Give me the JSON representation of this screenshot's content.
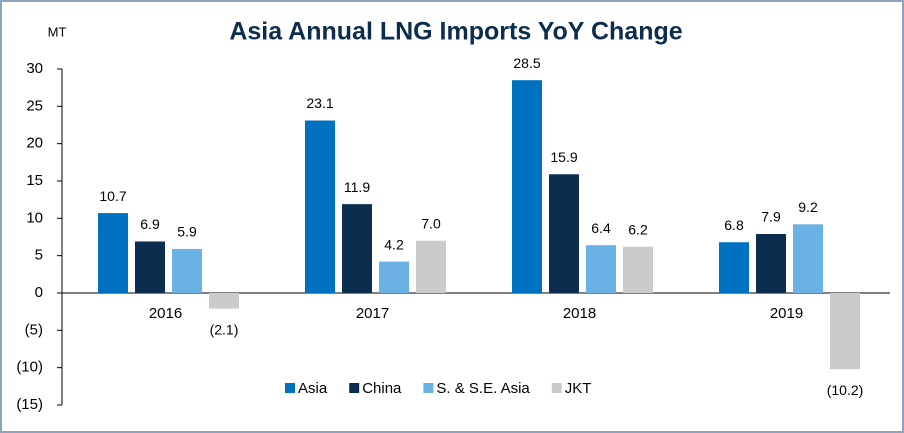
{
  "chart_data": {
    "type": "bar",
    "title": "Asia Annual LNG Imports YoY Change",
    "y_label": "MT",
    "categories": [
      "2016",
      "2017",
      "2018",
      "2019"
    ],
    "series": [
      {
        "name": "Asia",
        "color": "#0070c0",
        "values": [
          10.7,
          23.1,
          28.5,
          6.8
        ]
      },
      {
        "name": "China",
        "color": "#0c2d4e",
        "values": [
          6.9,
          11.9,
          15.9,
          7.9
        ]
      },
      {
        "name": "S. & S.E. Asia",
        "color": "#6cb1e3",
        "values": [
          5.9,
          4.2,
          6.4,
          9.2
        ]
      },
      {
        "name": "JKT",
        "color": "#cbcbcb",
        "values": [
          -2.1,
          7.0,
          6.2,
          -10.2
        ],
        "value_labels": [
          "(2.1)",
          "7.0",
          "6.2",
          "(10.2)"
        ]
      }
    ],
    "ylim": [
      -15,
      30
    ],
    "yticks": [
      {
        "value": -15,
        "label": "(15)"
      },
      {
        "value": -10,
        "label": "(10)"
      },
      {
        "value": -5,
        "label": "(5)"
      },
      0,
      5,
      10,
      15,
      20,
      25,
      30
    ],
    "legend": "bottom"
  }
}
